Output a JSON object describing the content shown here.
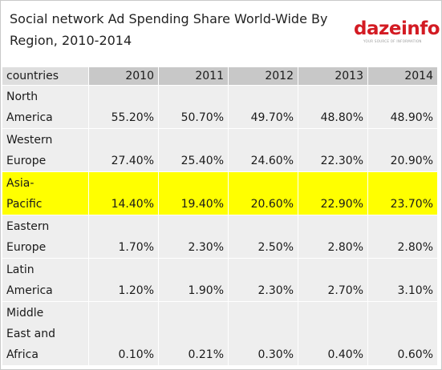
{
  "header": {
    "title_line1": "Social network Ad Spending Share World-Wide By",
    "title_line2": "Region, 2010-2014",
    "logo_text": "dazeinfo",
    "logo_tagline": "YOUR SOURCE OF INFORMATION"
  },
  "colors": {
    "highlight_row": "#ffff00",
    "header_bg": "#c8c8c8",
    "row_bg": "#eeeeee",
    "logo_red": "#d31b23"
  },
  "chart_data": {
    "type": "table",
    "title": "Social network Ad Spending Share World-Wide By Region, 2010-2014",
    "columns": [
      "countries",
      "2010",
      "2011",
      "2012",
      "2013",
      "2014"
    ],
    "rows": [
      {
        "name_lines": [
          "North",
          "America"
        ],
        "values": [
          "55.20%",
          "50.70%",
          "49.70%",
          "48.80%",
          "48.90%"
        ],
        "highlight": false
      },
      {
        "name_lines": [
          "Western",
          "Europe"
        ],
        "values": [
          "27.40%",
          "25.40%",
          "24.60%",
          "22.30%",
          "20.90%"
        ],
        "highlight": false
      },
      {
        "name_lines": [
          "Asia-",
          "Pacific"
        ],
        "values": [
          "14.40%",
          "19.40%",
          "20.60%",
          "22.90%",
          "23.70%"
        ],
        "highlight": true
      },
      {
        "name_lines": [
          "Eastern",
          "Europe"
        ],
        "values": [
          "1.70%",
          "2.30%",
          "2.50%",
          "2.80%",
          "2.80%"
        ],
        "highlight": false
      },
      {
        "name_lines": [
          "Latin",
          "America"
        ],
        "values": [
          "1.20%",
          "1.90%",
          "2.30%",
          "2.70%",
          "3.10%"
        ],
        "highlight": false
      },
      {
        "name_lines": [
          "Middle",
          "East and",
          "Africa"
        ],
        "values": [
          "0.10%",
          "0.21%",
          "0.30%",
          "0.40%",
          "0.60%"
        ],
        "highlight": false
      }
    ]
  }
}
